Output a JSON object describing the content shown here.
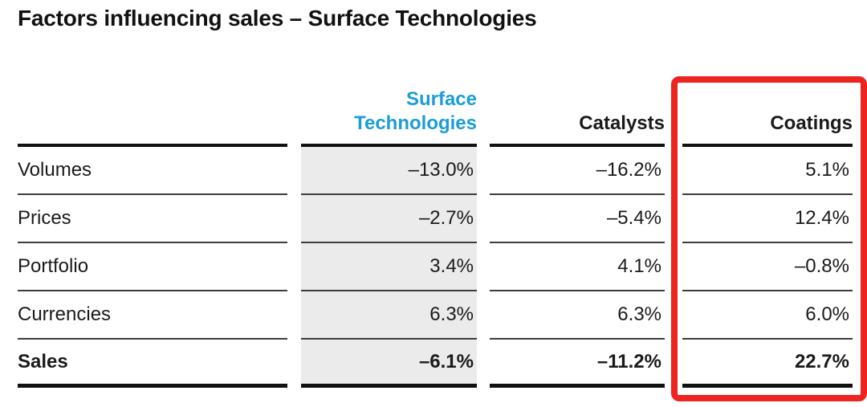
{
  "page": {
    "title": "Factors influencing sales – Surface Technologies"
  },
  "table": {
    "columns": [
      {
        "id": "surface-technologies",
        "label": "Surface\nTechnologies",
        "accent_color": "#1b9dd9"
      },
      {
        "id": "catalysts",
        "label": "Catalysts"
      },
      {
        "id": "coatings",
        "label": "Coatings",
        "highlighted": true
      }
    ],
    "rows": [
      {
        "label": "Volumes",
        "values": [
          "–13.0%",
          "–16.2%",
          "5.1%"
        ]
      },
      {
        "label": "Prices",
        "values": [
          "–2.7%",
          "–5.4%",
          "12.4%"
        ]
      },
      {
        "label": "Portfolio",
        "values": [
          "3.4%",
          "4.1%",
          "–0.8%"
        ]
      },
      {
        "label": "Currencies",
        "values": [
          "6.3%",
          "6.3%",
          "6.0%"
        ]
      },
      {
        "label": "Sales",
        "values": [
          "–6.1%",
          "–11.2%",
          "22.7%"
        ],
        "emphasis": true
      }
    ]
  },
  "chart_data": {
    "type": "table",
    "title": "Factors influencing sales – Surface Technologies",
    "columns": [
      "Surface Technologies",
      "Catalysts",
      "Coatings"
    ],
    "row_labels": [
      "Volumes",
      "Prices",
      "Portfolio",
      "Currencies",
      "Sales"
    ],
    "values": [
      [
        -13.0,
        -16.2,
        5.1
      ],
      [
        -2.7,
        -5.4,
        12.4
      ],
      [
        3.4,
        4.1,
        -0.8
      ],
      [
        6.3,
        6.3,
        6.0
      ],
      [
        -6.1,
        -11.2,
        22.7
      ]
    ],
    "unit": "%",
    "highlighted_column": "Coatings",
    "shaded_column": "Surface Technologies",
    "bold_row": "Sales"
  },
  "colors": {
    "accent_blue": "#1b9dd9",
    "highlight_red": "#ee2420",
    "column_bg_gray": "#ebebeb",
    "text": "#1a1a1a"
  }
}
